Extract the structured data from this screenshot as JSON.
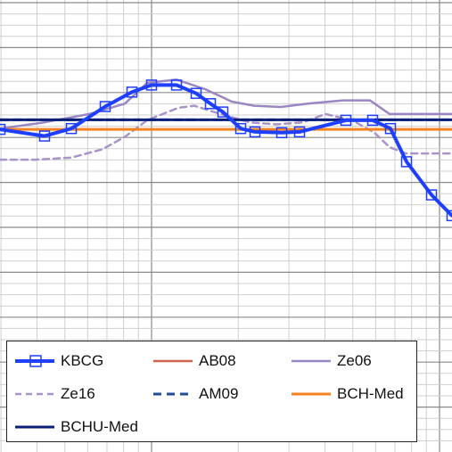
{
  "chart_data": {
    "type": "line",
    "title": "",
    "xlabel": "",
    "ylabel": "",
    "grid": true,
    "legend_position": "bottom",
    "xlim": [
      0,
      507
    ],
    "ylim": [
      -0.78,
      0.31
    ],
    "series": [
      {
        "name": "KBCG",
        "color": "#1f3fff",
        "style": "solid-thick-markers",
        "x": [
          0,
          50,
          80,
          118,
          148,
          170,
          198,
          220,
          236,
          250,
          270,
          286,
          316,
          336,
          388,
          418,
          438,
          456,
          484,
          507
        ],
        "y": [
          -0.002,
          -0.018,
          0.0,
          0.053,
          0.088,
          0.105,
          0.105,
          0.085,
          0.06,
          0.04,
          0.0,
          -0.008,
          -0.01,
          -0.008,
          0.02,
          0.02,
          0.0,
          -0.08,
          -0.16,
          -0.21
        ]
      },
      {
        "name": "AB08",
        "color": "#d0614a",
        "style": "solid",
        "x": [
          0,
          507
        ],
        "y": [
          -0.002,
          -0.002
        ]
      },
      {
        "name": "Ze06",
        "color": "#9b86c4",
        "style": "solid",
        "x": [
          0,
          50,
          100,
          140,
          165,
          198,
          230,
          260,
          285,
          315,
          345,
          385,
          415,
          437,
          470,
          507
        ],
        "y": [
          0.0,
          0.015,
          0.035,
          0.06,
          0.11,
          0.118,
          0.095,
          0.065,
          0.055,
          0.052,
          0.06,
          0.068,
          0.068,
          0.035,
          0.035,
          0.035
        ]
      },
      {
        "name": "Ze16",
        "color": "#a894c8",
        "style": "dashed",
        "x": [
          0,
          40,
          80,
          115,
          140,
          165,
          200,
          218,
          240,
          280,
          310,
          340,
          365,
          395,
          420,
          437,
          455,
          470,
          507
        ],
        "y": [
          -0.075,
          -0.075,
          -0.07,
          -0.05,
          -0.02,
          0.02,
          0.05,
          0.055,
          0.04,
          0.015,
          0.01,
          0.015,
          0.035,
          0.02,
          -0.01,
          -0.045,
          -0.06,
          -0.06,
          -0.06
        ]
      },
      {
        "name": "AM09",
        "color": "#1f4e96",
        "style": "dashed-thick",
        "x": [
          0,
          507
        ],
        "y": [
          0.021,
          0.021
        ]
      },
      {
        "name": "BCH-Med",
        "color": "#f58220",
        "style": "solid-thick",
        "x": [
          0,
          507
        ],
        "y": [
          -0.002,
          -0.002
        ]
      },
      {
        "name": "BCHU-Med",
        "color": "#0b1f7a",
        "style": "solid-thick",
        "x": [
          0,
          507
        ],
        "y": [
          0.021,
          0.021
        ]
      }
    ]
  },
  "legend": {
    "items": [
      {
        "label": "KBCG"
      },
      {
        "label": "AB08"
      },
      {
        "label": "Ze06"
      },
      {
        "label": "Ze16"
      },
      {
        "label": "AM09"
      },
      {
        "label": "BCH-Med"
      },
      {
        "label": "BCHU-Med"
      }
    ]
  },
  "colors": {
    "grid_major": "#8a8a8a",
    "grid_minor": "#cfcfcf"
  }
}
